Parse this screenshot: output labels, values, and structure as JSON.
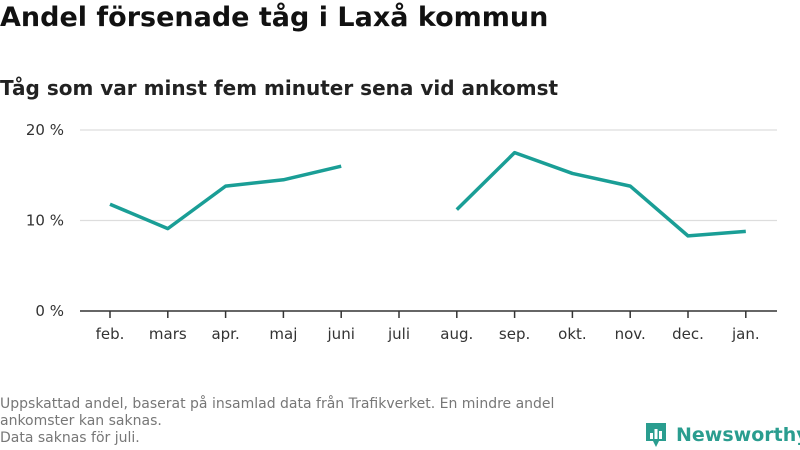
{
  "header": {
    "title": "Andel försenade tåg i Laxå kommun",
    "subtitle": "Tåg som var minst fem minuter sena vid ankomst"
  },
  "footer": {
    "note_line1": "Uppskattad andel, baserat på insamlad data från Trafikverket. En mindre andel",
    "note_line2": "ankomster kan saknas.",
    "note_line3": "Data saknas för juli.",
    "brand_name": "Newsworthy",
    "brand_icon": "bar-chart-pin-icon"
  },
  "colors": {
    "line": "#1a9e96",
    "grid": "#dddddd",
    "axis": "#333333",
    "brand": "#2a9d8f"
  },
  "chart_data": {
    "type": "line",
    "title": "Andel försenade tåg i Laxå kommun",
    "subtitle": "Tåg som var minst fem minuter sena vid ankomst",
    "xlabel": "",
    "ylabel": "",
    "categories": [
      "feb.",
      "mars",
      "apr.",
      "maj",
      "juni",
      "juli",
      "aug.",
      "sep.",
      "okt.",
      "nov.",
      "dec.",
      "jan."
    ],
    "series": [
      {
        "values": [
          11.8,
          9.1,
          13.8,
          14.5,
          16.0,
          null,
          11.2,
          17.5,
          15.2,
          13.8,
          8.3,
          8.8
        ]
      }
    ],
    "ylim": [
      0,
      20
    ],
    "yticks": [
      0,
      10,
      20
    ],
    "ytick_labels": [
      "0 %",
      "10 %",
      "20 %"
    ],
    "grid": true,
    "legend": "none"
  }
}
